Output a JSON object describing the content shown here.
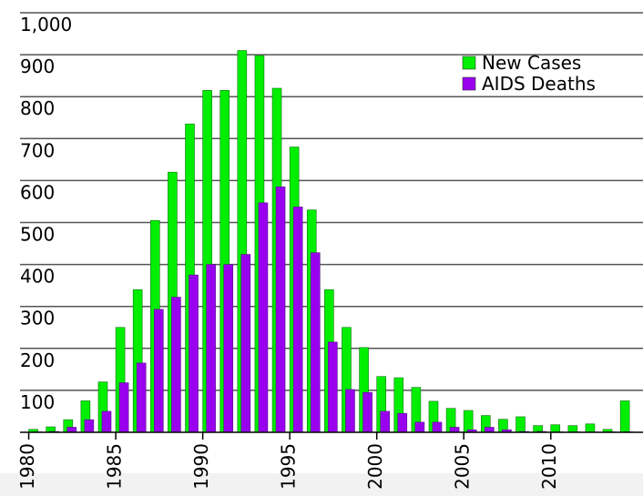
{
  "chart_data": {
    "type": "bar",
    "x": [
      1980,
      1981,
      1982,
      1983,
      1984,
      1985,
      1986,
      1987,
      1988,
      1989,
      1990,
      1991,
      1992,
      1993,
      1994,
      1995,
      1996,
      1997,
      1998,
      1999,
      2000,
      2001,
      2002,
      2003,
      2004,
      2005,
      2006,
      2007,
      2008,
      2009,
      2010,
      2011,
      2012,
      2013,
      2014
    ],
    "series": [
      {
        "name": "New Cases",
        "color": "#00ee00",
        "values": [
          7,
          13,
          30,
          75,
          120,
          250,
          340,
          505,
          620,
          735,
          815,
          815,
          910,
          898,
          820,
          680,
          530,
          340,
          250,
          202,
          133,
          130,
          107,
          74,
          57,
          52,
          40,
          31,
          37,
          16,
          18,
          16,
          20,
          7,
          75
        ]
      },
      {
        "name": "AIDS Deaths",
        "color": "#9900ee",
        "values": [
          1,
          2,
          12,
          30,
          50,
          118,
          165,
          293,
          322,
          375,
          400,
          400,
          424,
          547,
          585,
          537,
          428,
          215,
          102,
          95,
          50,
          45,
          24,
          24,
          12,
          6,
          12,
          6,
          2,
          2,
          1,
          1,
          1,
          1,
          1
        ]
      }
    ],
    "xlim": [
      1979.5,
      2015.3
    ],
    "xticks": [
      1980,
      1985,
      1990,
      1995,
      2000,
      2005,
      2010
    ],
    "ylim": [
      0,
      1000
    ],
    "yticks": [
      100,
      200,
      300,
      400,
      500,
      600,
      700,
      800,
      900,
      {
        "value": 1000,
        "label": "1,000"
      }
    ],
    "grid": true,
    "legend": "upper right"
  }
}
